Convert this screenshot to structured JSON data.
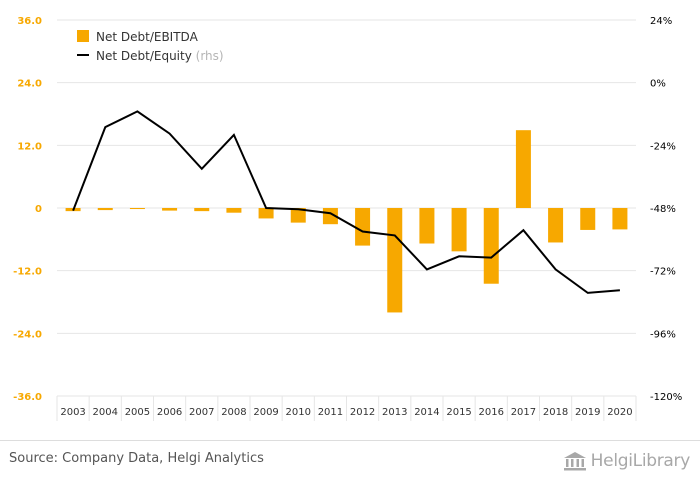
{
  "chart_data": {
    "type": "bar+line",
    "categories": [
      "2003",
      "2004",
      "2005",
      "2006",
      "2007",
      "2008",
      "2009",
      "2010",
      "2011",
      "2012",
      "2013",
      "2014",
      "2015",
      "2016",
      "2017",
      "2018",
      "2019",
      "2020"
    ],
    "series": [
      {
        "name": "Net Debt/EBITDA",
        "type": "bar",
        "axis": "left",
        "color": "#f7a800",
        "values": [
          -0.6,
          -0.4,
          -0.2,
          -0.5,
          -0.6,
          -0.9,
          -2.0,
          -2.8,
          -3.1,
          -7.2,
          -20.0,
          -6.8,
          -8.3,
          -14.5,
          14.9,
          -6.6,
          -4.2,
          -4.1
        ]
      },
      {
        "name": "Net Debt/Equity",
        "axis_note": "(rhs)",
        "type": "line",
        "axis": "right",
        "color": "#000000",
        "values": [
          -49.0,
          -17.0,
          -11.0,
          -19.5,
          -33.0,
          -20.0,
          -48.0,
          -48.5,
          -50.0,
          -57.0,
          -58.5,
          -71.5,
          -66.5,
          -67.0,
          -56.5,
          -71.5,
          -80.5,
          -79.5
        ]
      }
    ],
    "y_left": {
      "min": -36,
      "max": 36,
      "ticks": [
        "36.0",
        "24.0",
        "12.0",
        "0",
        "-12.0",
        "-24.0",
        "-36.0"
      ],
      "color": "#f7a800"
    },
    "y_right": {
      "min": -120,
      "max": 24,
      "ticks": [
        "24%",
        "0%",
        "-24%",
        "-48%",
        "-72%",
        "-96%",
        "-120%"
      ],
      "color": "#000000"
    },
    "grid": true,
    "legend_position": "top-left"
  },
  "footer": {
    "source": "Source: Company Data, Helgi Analytics",
    "logo_text": "HelgiLibrary"
  }
}
